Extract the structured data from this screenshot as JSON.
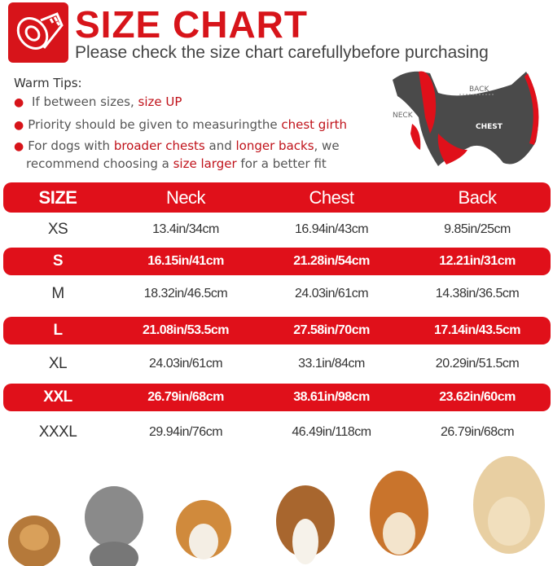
{
  "header": {
    "title": "SIZE CHART",
    "subtitle": "Please check the size chart carefullybefore purchasing",
    "logo_icon": "tape-measure-icon"
  },
  "tips": {
    "title": "Warm Tips:",
    "items": [
      {
        "pre": " If between sizes, ",
        "hl1": "size UP",
        "mid": "",
        "hl2": "",
        "post": ""
      },
      {
        "pre": "Priority should be given to measuringthe ",
        "hl1": "chest girth",
        "mid": "",
        "hl2": "",
        "post": ""
      },
      {
        "pre": "For dogs with ",
        "hl1": "broader chests",
        "mid": " and ",
        "hl2": "longer backs",
        "post": ", we"
      },
      {
        "pre": "recommend choosing a ",
        "hl1": "size larger",
        "mid": " for a better fit",
        "hl2": "",
        "post": ""
      }
    ]
  },
  "diagram": {
    "back": "BACK",
    "neck": "NECK",
    "chest": "CHEST"
  },
  "table": {
    "headers": [
      "SIZE",
      "Neck",
      "Chest",
      "Back"
    ],
    "rows": [
      [
        "XS",
        "13.4in/34cm",
        "16.94in/43cm",
        "9.85in/25cm"
      ],
      [
        "S",
        "16.15in/41cm",
        "21.28in/54cm",
        "12.21in/31cm"
      ],
      [
        "M",
        "18.32in/46.5cm",
        "24.03in/61cm",
        "14.38in/36.5cm"
      ],
      [
        "L",
        "21.08in/53.5cm",
        "27.58in/70cm",
        "17.14in/43.5cm"
      ],
      [
        "XL",
        "24.03in/61cm",
        "33.1in/84cm",
        "20.29in/51.5cm"
      ],
      [
        "XXL",
        "26.79in/68cm",
        "38.61in/98cm",
        "23.62in/60cm"
      ],
      [
        "XXXL",
        "29.94in/76cm",
        "46.49in/118cm",
        "26.79in/68cm"
      ]
    ]
  },
  "colors": {
    "accent": "#e0101a",
    "text": "#333333"
  }
}
